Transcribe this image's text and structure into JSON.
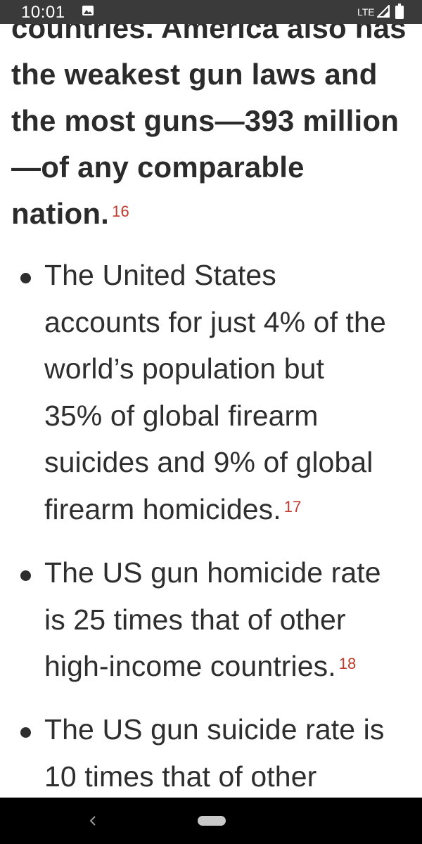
{
  "status_bar": {
    "time": "10:01",
    "network": "LTE",
    "notification_icon": "image-icon",
    "signal_icon": "signal-icon",
    "battery_icon": "battery-icon"
  },
  "article": {
    "lead_lines": [
      "countries. America also has",
      "the weakest gun laws and",
      "the most guns—393 million",
      "—of any comparable",
      "nation."
    ],
    "lead_cite": "16",
    "bullets": [
      {
        "lines": [
          "The United States",
          "accounts for just 4% of the",
          "world’s population but",
          "35% of global firearm",
          "suicides and 9% of global",
          "firearm homicides."
        ],
        "cite": "17"
      },
      {
        "lines": [
          "The US gun homicide rate",
          "is 25 times that of other",
          "high-income countries."
        ],
        "cite": "18"
      },
      {
        "lines": [
          "The US gun suicide rate is",
          "10 times that of other"
        ],
        "cite": ""
      }
    ]
  },
  "colors": {
    "text": "#2e2e2e",
    "citation": "#c0392b",
    "status_bar": "#3a3a3a",
    "nav_bar": "#000000"
  },
  "nav_bar": {
    "back_icon": "back-chevron-icon",
    "home_icon": "home-pill-icon"
  }
}
